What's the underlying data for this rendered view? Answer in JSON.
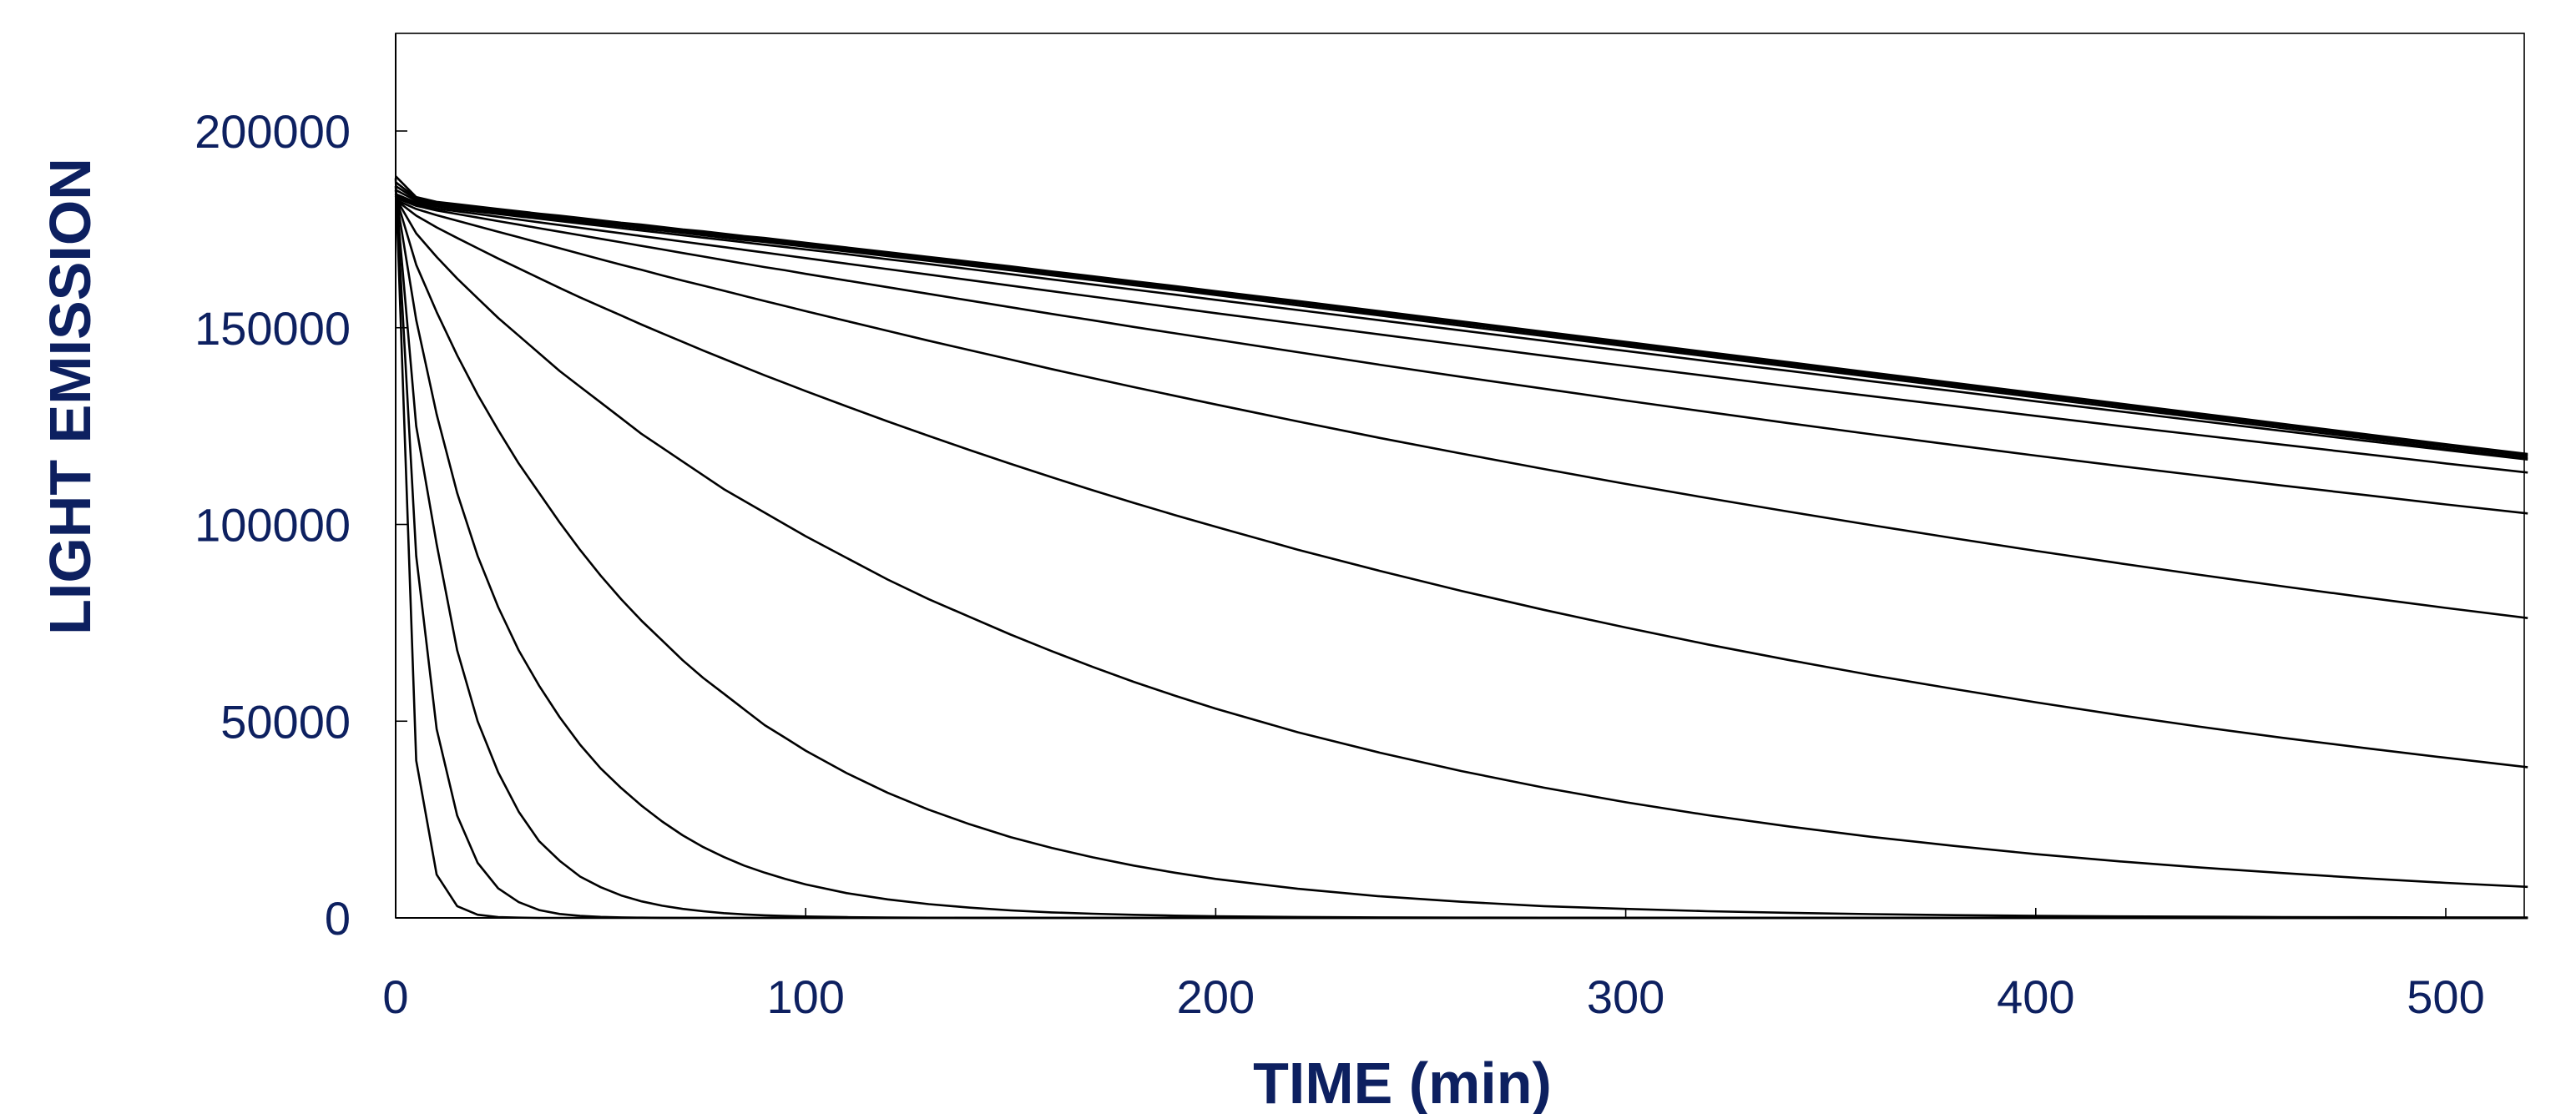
{
  "chart_data": {
    "type": "line",
    "title": "",
    "xlabel": "TIME (min)",
    "ylabel": "LIGHT EMISSION",
    "xlim": [
      0,
      525
    ],
    "ylim": [
      0,
      225000
    ],
    "xticks": [
      0,
      100,
      200,
      300,
      400,
      500
    ],
    "xtick_labels": [
      "0",
      "100",
      "200",
      "300",
      "400",
      "500"
    ],
    "yticks": [
      0,
      50000,
      100000,
      150000,
      200000
    ],
    "ytick_labels": [
      "0",
      "50000",
      "100000",
      "150000",
      "200000"
    ],
    "grid": false,
    "legend": "none",
    "line_color": "#000000",
    "label_color": "#0d2060",
    "x": [
      0,
      5,
      10,
      15,
      20,
      25,
      30,
      35,
      40,
      45,
      50,
      55,
      60,
      65,
      70,
      75,
      80,
      85,
      90,
      95,
      100,
      110,
      120,
      130,
      140,
      150,
      160,
      170,
      180,
      190,
      200,
      220,
      240,
      260,
      280,
      300,
      320,
      340,
      360,
      380,
      400,
      420,
      440,
      460,
      480,
      500,
      520
    ],
    "series": [
      {
        "values": [
          188000,
          40000,
          11000,
          3000,
          800,
          200,
          60,
          10,
          0,
          0,
          0,
          0,
          0,
          0,
          0,
          0,
          0,
          0,
          0,
          0,
          0,
          0,
          0,
          0,
          0,
          0,
          0,
          0,
          0,
          0,
          0,
          0,
          0,
          0,
          0,
          0,
          0,
          0,
          0,
          0,
          0,
          0,
          0,
          0,
          0,
          0,
          0
        ]
      },
      {
        "values": [
          186000,
          92000,
          48000,
          26000,
          14000,
          7500,
          4000,
          2000,
          1000,
          500,
          250,
          120,
          60,
          30,
          10,
          0,
          0,
          0,
          0,
          0,
          0,
          0,
          0,
          0,
          0,
          0,
          0,
          0,
          0,
          0,
          0,
          0,
          0,
          0,
          0,
          0,
          0,
          0,
          0,
          0,
          0,
          0,
          0,
          0,
          0,
          0,
          0
        ]
      },
      {
        "values": [
          185000,
          125000,
          95000,
          68000,
          50000,
          37000,
          27000,
          19500,
          14500,
          10500,
          7800,
          5700,
          4200,
          3100,
          2300,
          1700,
          1200,
          900,
          650,
          480,
          350,
          190,
          100,
          50,
          30,
          15,
          0,
          0,
          0,
          0,
          0,
          0,
          0,
          0,
          0,
          0,
          0,
          0,
          0,
          0,
          0,
          0,
          0,
          0,
          0,
          0,
          0
        ]
      },
      {
        "values": [
          184000,
          152000,
          128000,
          108000,
          92000,
          79000,
          68000,
          59000,
          51000,
          44000,
          38000,
          33000,
          28500,
          24500,
          21000,
          18000,
          15500,
          13300,
          11500,
          9900,
          8500,
          6300,
          4700,
          3500,
          2600,
          1900,
          1400,
          1050,
          780,
          580,
          430,
          240,
          130,
          70,
          40,
          20,
          10,
          0,
          0,
          0,
          0,
          0,
          0,
          0,
          0,
          0,
          0
        ]
      },
      {
        "values": [
          183500,
          166000,
          154000,
          143000,
          133000,
          124000,
          115500,
          108000,
          100500,
          93500,
          87000,
          81000,
          75500,
          70500,
          65500,
          61000,
          57000,
          53000,
          49000,
          45800,
          42500,
          36800,
          31800,
          27500,
          23800,
          20500,
          17800,
          15400,
          13300,
          11500,
          9900,
          7400,
          5500,
          4100,
          3000,
          2300,
          1700,
          1300,
          950,
          700,
          520,
          390,
          290,
          220,
          160,
          120,
          90
        ]
      },
      {
        "values": [
          183000,
          174000,
          168000,
          162500,
          157500,
          152500,
          148000,
          143500,
          139000,
          135000,
          131000,
          127000,
          123000,
          119500,
          116000,
          112500,
          109000,
          106000,
          103000,
          100000,
          97000,
          91500,
          86000,
          81000,
          76500,
          72000,
          67800,
          63800,
          60000,
          56500,
          53200,
          47200,
          42000,
          37300,
          33100,
          29400,
          26100,
          23200,
          20600,
          18300,
          16200,
          14400,
          12800,
          11400,
          10100,
          8900,
          7900
        ]
      },
      {
        "values": [
          182500,
          178500,
          175500,
          172800,
          170200,
          167600,
          165100,
          162600,
          160100,
          157700,
          155400,
          153100,
          150800,
          148600,
          146400,
          144200,
          142100,
          140000,
          137900,
          135900,
          133900,
          130000,
          126200,
          122500,
          118900,
          115400,
          112000,
          108700,
          105500,
          102400,
          99400,
          93600,
          88200,
          83100,
          78300,
          73800,
          69500,
          65500,
          61700,
          58200,
          54800,
          51600,
          48600,
          45800,
          43200,
          40700,
          38300
        ]
      },
      {
        "values": [
          182500,
          180200,
          178600,
          177200,
          175800,
          174400,
          173000,
          171600,
          170200,
          168800,
          167400,
          166000,
          164700,
          163300,
          162000,
          160700,
          159400,
          158100,
          156800,
          155500,
          154200,
          151700,
          149200,
          146700,
          144300,
          141900,
          139500,
          137200,
          134900,
          132700,
          130500,
          126200,
          122000,
          118000,
          114100,
          110300,
          106700,
          103200,
          99800,
          96500,
          93300,
          90200,
          87200,
          84300,
          81500,
          78800,
          76200
        ]
      },
      {
        "values": [
          183000,
          181000,
          179800,
          178900,
          178000,
          177100,
          176200,
          175300,
          174400,
          173500,
          172600,
          171700,
          170800,
          169900,
          169000,
          168100,
          167200,
          166300,
          165400,
          164600,
          163700,
          162000,
          160300,
          158600,
          156900,
          155200,
          153500,
          151900,
          150200,
          148600,
          147000,
          143800,
          140600,
          137500,
          134500,
          131500,
          128600,
          125700,
          122900,
          120200,
          117500,
          114900,
          112400,
          109900,
          107500,
          105100,
          102800
        ]
      },
      {
        "values": [
          183500,
          181400,
          180300,
          179600,
          178900,
          178200,
          177500,
          176800,
          176100,
          175400,
          174700,
          174000,
          173300,
          172600,
          171900,
          171200,
          170500,
          169800,
          169100,
          168400,
          167700,
          166300,
          164900,
          163500,
          162100,
          160700,
          159300,
          157900,
          156500,
          155100,
          153700,
          151000,
          148300,
          145600,
          142900,
          140300,
          137700,
          135100,
          132600,
          130100,
          127600,
          125100,
          122700,
          120300,
          117900,
          115500,
          113200
        ]
      },
      {
        "values": [
          184000,
          181800,
          180800,
          180100,
          179500,
          178900,
          178300,
          177700,
          177100,
          176500,
          175900,
          175300,
          174700,
          174100,
          173500,
          172900,
          172300,
          171700,
          171100,
          170500,
          169900,
          168700,
          167400,
          166200,
          164900,
          163600,
          162300,
          161000,
          159700,
          158400,
          157100,
          154500,
          151900,
          149300,
          146700,
          144100,
          141500,
          139000,
          136400,
          133900,
          131300,
          128800,
          126300,
          123800,
          121300,
          118900,
          116500
        ]
      },
      {
        "values": [
          185000,
          182300,
          181200,
          180500,
          179900,
          179300,
          178700,
          178100,
          177500,
          177000,
          176400,
          175800,
          175200,
          174700,
          174100,
          173500,
          172900,
          172300,
          171800,
          171200,
          170600,
          169400,
          168200,
          167000,
          165800,
          164600,
          163300,
          162100,
          160800,
          159600,
          158300,
          155700,
          153100,
          150500,
          147900,
          145300,
          142700,
          140100,
          137500,
          134900,
          132300,
          129700,
          127100,
          124500,
          121900,
          119300,
          116800
        ]
      },
      {
        "values": [
          186000,
          182700,
          181500,
          180800,
          180200,
          179600,
          179000,
          178500,
          177900,
          177300,
          176700,
          176200,
          175600,
          175000,
          174400,
          173900,
          173300,
          172700,
          172100,
          171600,
          171000,
          169800,
          168600,
          167400,
          166200,
          165000,
          163800,
          162500,
          161300,
          160000,
          158800,
          156200,
          153600,
          151000,
          148400,
          145800,
          143200,
          140600,
          138000,
          135400,
          132800,
          130200,
          127600,
          125000,
          122400,
          119800,
          117300
        ]
      },
      {
        "values": [
          187000,
          183000,
          181800,
          181100,
          180500,
          179900,
          179300,
          178700,
          178100,
          177600,
          177000,
          176400,
          175900,
          175300,
          174700,
          174100,
          173600,
          173000,
          172400,
          171900,
          171300,
          170100,
          168900,
          167700,
          166500,
          165300,
          164000,
          162800,
          161500,
          160300,
          159000,
          156500,
          153900,
          151300,
          148700,
          146100,
          143500,
          140900,
          138300,
          135700,
          133100,
          130500,
          127900,
          125300,
          122700,
          120100,
          117600
        ]
      },
      {
        "values": [
          188500,
          183200,
          182000,
          181400,
          180800,
          180200,
          179600,
          179000,
          178500,
          177900,
          177300,
          176700,
          176200,
          175600,
          175000,
          174500,
          173900,
          173300,
          172800,
          172200,
          171600,
          170400,
          169200,
          168000,
          166800,
          165600,
          164300,
          163100,
          161800,
          160600,
          159300,
          156800,
          154200,
          151600,
          149000,
          146400,
          143800,
          141200,
          138600,
          136000,
          133400,
          130800,
          128200,
          125600,
          123000,
          120400,
          117900
        ]
      }
    ]
  }
}
